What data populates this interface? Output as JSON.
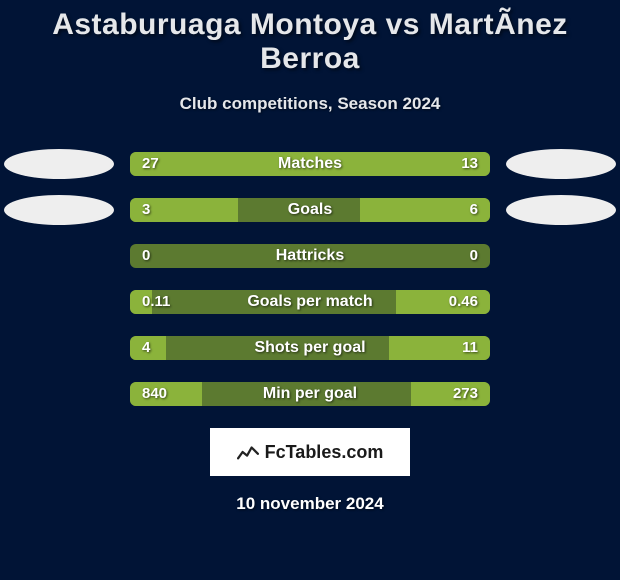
{
  "title": "Astaburuaga Montoya vs MartÃ­nez Berroa",
  "subtitle": "Club competitions, Season 2024",
  "date": "10 november 2024",
  "logo_text": "FcTables.com",
  "colors": {
    "page_bg": "#011436",
    "title_color": "#e5e7ea",
    "subtitle_color": "#e5e7ea",
    "track_bg": "#5c7a30",
    "left_bar": "#8bb33b",
    "right_bar": "#8bb33b",
    "avatar_bg": "#eeeeee",
    "logo_icon": "#222222"
  },
  "avatars": {
    "show_left_on_rows": [
      0,
      1
    ],
    "show_right_on_rows": [
      0,
      1
    ]
  },
  "rows": [
    {
      "metric": "Matches",
      "left_val": "27",
      "right_val": "13",
      "left_pct": 0.68,
      "right_pct": 0.32
    },
    {
      "metric": "Goals",
      "left_val": "3",
      "right_val": "6",
      "left_pct": 0.3,
      "right_pct": 0.36
    },
    {
      "metric": "Hattricks",
      "left_val": "0",
      "right_val": "0",
      "left_pct": 0.0,
      "right_pct": 0.0
    },
    {
      "metric": "Goals per match",
      "left_val": "0.11",
      "right_val": "0.46",
      "left_pct": 0.06,
      "right_pct": 0.26
    },
    {
      "metric": "Shots per goal",
      "left_val": "4",
      "right_val": "11",
      "left_pct": 0.1,
      "right_pct": 0.28
    },
    {
      "metric": "Min per goal",
      "left_val": "840",
      "right_val": "273",
      "left_pct": 0.2,
      "right_pct": 0.22
    }
  ]
}
